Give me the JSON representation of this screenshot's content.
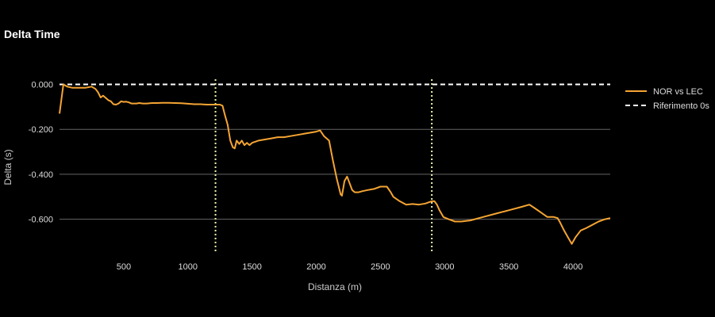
{
  "chart_data": {
    "type": "line",
    "title": "Delta Time",
    "xlabel": "Distanza (m)",
    "ylabel": "Delta (s)",
    "xlim": [
      0,
      4290
    ],
    "ylim": [
      -0.76,
      0.03
    ],
    "xticks": [
      500,
      1000,
      1500,
      2000,
      2500,
      3000,
      3500,
      4000
    ],
    "yticks": [
      0.0,
      -0.2,
      -0.4,
      -0.6
    ],
    "ytick_labels": [
      "0.000",
      "-0.200",
      "-0.400",
      "-0.600"
    ],
    "grid": true,
    "legend_position": "right",
    "colors": {
      "series": "#f5a433",
      "reference": "#ffffff",
      "markers": "#e8f5a8",
      "grid": "#666666"
    },
    "series": [
      {
        "name": "NOR vs LEC",
        "x": [
          0,
          30,
          60,
          100,
          150,
          200,
          250,
          280,
          300,
          320,
          340,
          360,
          380,
          400,
          420,
          440,
          460,
          480,
          500,
          520,
          540,
          560,
          580,
          600,
          620,
          650,
          680,
          720,
          760,
          800,
          850,
          900,
          950,
          1000,
          1050,
          1100,
          1150,
          1200,
          1250,
          1270,
          1290,
          1310,
          1330,
          1350,
          1365,
          1380,
          1400,
          1420,
          1440,
          1460,
          1480,
          1500,
          1550,
          1600,
          1650,
          1700,
          1750,
          1800,
          1850,
          1900,
          1950,
          2000,
          2030,
          2060,
          2100,
          2130,
          2160,
          2190,
          2200,
          2220,
          2240,
          2260,
          2280,
          2300,
          2330,
          2360,
          2400,
          2450,
          2500,
          2550,
          2580,
          2600,
          2650,
          2700,
          2750,
          2800,
          2850,
          2900,
          2920,
          2940,
          2960,
          2990,
          3030,
          3080,
          3130,
          3200,
          3300,
          3400,
          3500,
          3600,
          3660,
          3700,
          3750,
          3800,
          3850,
          3880,
          3900,
          3930,
          3960,
          3990,
          4020,
          4060,
          4100,
          4150,
          4200,
          4250,
          4290
        ],
        "y": [
          -0.13,
          0.0,
          -0.01,
          -0.015,
          -0.015,
          -0.015,
          -0.01,
          -0.02,
          -0.035,
          -0.058,
          -0.05,
          -0.06,
          -0.07,
          -0.075,
          -0.088,
          -0.09,
          -0.085,
          -0.075,
          -0.078,
          -0.077,
          -0.08,
          -0.085,
          -0.085,
          -0.085,
          -0.083,
          -0.085,
          -0.085,
          -0.083,
          -0.083,
          -0.082,
          -0.082,
          -0.083,
          -0.084,
          -0.086,
          -0.088,
          -0.088,
          -0.09,
          -0.09,
          -0.09,
          -0.095,
          -0.14,
          -0.18,
          -0.25,
          -0.28,
          -0.285,
          -0.25,
          -0.265,
          -0.25,
          -0.27,
          -0.26,
          -0.27,
          -0.26,
          -0.25,
          -0.245,
          -0.24,
          -0.235,
          -0.235,
          -0.23,
          -0.225,
          -0.22,
          -0.215,
          -0.21,
          -0.205,
          -0.23,
          -0.25,
          -0.34,
          -0.42,
          -0.49,
          -0.495,
          -0.43,
          -0.41,
          -0.44,
          -0.47,
          -0.48,
          -0.48,
          -0.475,
          -0.47,
          -0.465,
          -0.455,
          -0.455,
          -0.48,
          -0.5,
          -0.52,
          -0.535,
          -0.532,
          -0.535,
          -0.53,
          -0.52,
          -0.52,
          -0.535,
          -0.56,
          -0.59,
          -0.6,
          -0.61,
          -0.61,
          -0.605,
          -0.59,
          -0.575,
          -0.56,
          -0.545,
          -0.535,
          -0.55,
          -0.57,
          -0.59,
          -0.59,
          -0.595,
          -0.615,
          -0.65,
          -0.68,
          -0.71,
          -0.68,
          -0.65,
          -0.64,
          -0.625,
          -0.61,
          -0.6,
          -0.595
        ]
      }
    ],
    "reference_line": {
      "name": "Riferimento 0s",
      "y": 0.0,
      "style": "dashed"
    },
    "vertical_markers": [
      1215,
      2900
    ]
  }
}
